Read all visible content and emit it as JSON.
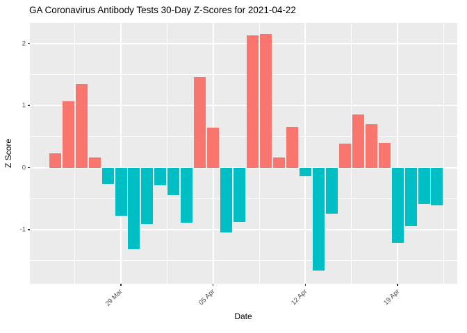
{
  "title": "GA Coronavirus Antibody Tests 30-Day Z-Scores for 2021-04-22",
  "chart_data": {
    "type": "bar",
    "title": "GA Coronavirus Antibody Tests 30-Day Z-Scores for 2021-04-22",
    "xlabel": "Date",
    "ylabel": "Z Score",
    "x": [
      "2021-03-24",
      "2021-03-25",
      "2021-03-26",
      "2021-03-27",
      "2021-03-28",
      "2021-03-29",
      "2021-03-30",
      "2021-03-31",
      "2021-04-01",
      "2021-04-02",
      "2021-04-03",
      "2021-04-04",
      "2021-04-05",
      "2021-04-06",
      "2021-04-07",
      "2021-04-08",
      "2021-04-09",
      "2021-04-10",
      "2021-04-11",
      "2021-04-12",
      "2021-04-13",
      "2021-04-14",
      "2021-04-15",
      "2021-04-16",
      "2021-04-17",
      "2021-04-18",
      "2021-04-19",
      "2021-04-20",
      "2021-04-21",
      "2021-04-22"
    ],
    "values": [
      0.23,
      1.07,
      1.35,
      0.16,
      -0.26,
      -0.77,
      -1.31,
      -0.91,
      -0.28,
      -0.44,
      -0.89,
      1.46,
      0.64,
      -1.04,
      -0.88,
      2.13,
      2.15,
      0.16,
      0.66,
      -0.14,
      -1.66,
      -0.74,
      0.39,
      0.86,
      0.7,
      0.4,
      -1.21,
      -0.94,
      -0.58,
      -0.61
    ],
    "positive_color": "#F8766D",
    "negative_color": "#00BFC4",
    "panel_background": "#EBEBEB",
    "gridline_color": "#FFFFFF",
    "tick_label_color": "#4D4D4D",
    "x_ticks": [
      {
        "label": "29 Mar",
        "index": 5
      },
      {
        "label": "05 Apr",
        "index": 12
      },
      {
        "label": "12 Apr",
        "index": 19
      },
      {
        "label": "19 Apr",
        "index": 26
      }
    ],
    "x_minor_indices": [
      1.5,
      8.5,
      15.5,
      22.5,
      29.5
    ],
    "y_ticks": [
      2,
      1,
      0,
      -1
    ],
    "y_minor": [
      1.5,
      0.5,
      -0.5,
      -1.5
    ],
    "ylim": [
      -1.87,
      2.33
    ],
    "grid": true,
    "legend": "none"
  }
}
